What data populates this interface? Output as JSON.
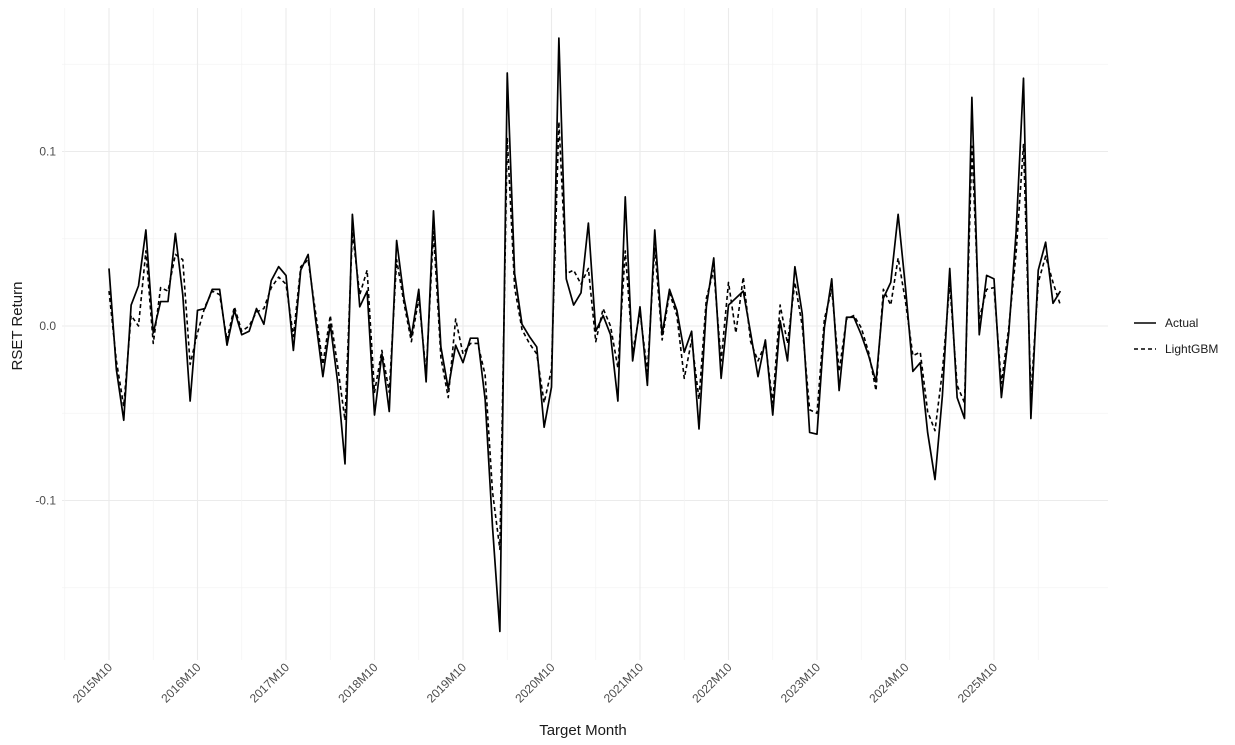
{
  "chart_data": {
    "type": "line",
    "xlabel": "Target Month",
    "ylabel": "RSET Return",
    "x_start": "2015M10",
    "x_tick_labels": [
      "2015M10",
      "2016M10",
      "2017M10",
      "2018M10",
      "2019M10",
      "2020M10",
      "2021M10",
      "2022M10",
      "2023M10",
      "2024M10",
      "2025M10"
    ],
    "y_ticks": [
      -0.1,
      0.0,
      0.1
    ],
    "y_tick_labels": [
      "-0.1",
      "0.0",
      "0.1"
    ],
    "ylim": [
      -0.175,
      0.175
    ],
    "grid": true,
    "legend_position": "right",
    "series": [
      {
        "name": "Actual",
        "linestyle": "solid",
        "values": [
          0.033,
          -0.025,
          -0.054,
          0.012,
          0.023,
          0.055,
          -0.004,
          0.014,
          0.014,
          0.053,
          0.018,
          -0.043,
          0.009,
          0.01,
          0.021,
          0.021,
          -0.011,
          0.009,
          -0.005,
          -0.003,
          0.01,
          0.001,
          0.026,
          0.034,
          0.029,
          -0.014,
          0.032,
          0.041,
          0.004,
          -0.029,
          0.001,
          -0.032,
          -0.079,
          0.064,
          0.011,
          0.02,
          -0.051,
          -0.016,
          -0.049,
          0.049,
          0.016,
          -0.006,
          0.021,
          -0.032,
          0.066,
          -0.012,
          -0.036,
          -0.011,
          -0.021,
          -0.007,
          -0.007,
          -0.042,
          -0.115,
          -0.175,
          0.145,
          0.03,
          0.001,
          -0.006,
          -0.012,
          -0.058,
          -0.035,
          0.165,
          0.027,
          0.012,
          0.019,
          0.059,
          -0.003,
          0.006,
          -0.005,
          -0.043,
          0.074,
          -0.02,
          0.011,
          -0.034,
          0.055,
          -0.005,
          0.021,
          0.009,
          -0.015,
          -0.003,
          -0.059,
          0.011,
          0.039,
          -0.03,
          0.012,
          0.016,
          0.02,
          -0.004,
          -0.029,
          -0.008,
          -0.051,
          0.003,
          -0.02,
          0.034,
          0.007,
          -0.061,
          -0.062,
          -0.001,
          0.027,
          -0.037,
          0.005,
          0.005,
          -0.005,
          -0.017,
          -0.032,
          0.016,
          0.025,
          0.064,
          0.022,
          -0.026,
          -0.021,
          -0.061,
          -0.088,
          -0.04,
          0.033,
          -0.041,
          -0.053,
          0.131,
          -0.005,
          0.029,
          0.027,
          -0.041,
          -0.004,
          0.054,
          0.142,
          -0.053,
          0.032,
          0.048,
          0.013,
          0.02
        ]
      },
      {
        "name": "LightGBM",
        "linestyle": "dashed",
        "values": [
          0.02,
          -0.02,
          -0.046,
          0.006,
          0.0,
          0.043,
          -0.01,
          0.022,
          0.02,
          0.041,
          0.038,
          -0.022,
          -0.004,
          0.011,
          0.02,
          0.018,
          -0.008,
          0.011,
          -0.003,
          0.0,
          0.008,
          0.01,
          0.022,
          0.028,
          0.024,
          -0.006,
          0.034,
          0.038,
          0.008,
          -0.022,
          0.006,
          -0.023,
          -0.054,
          0.054,
          0.018,
          0.032,
          -0.038,
          -0.014,
          -0.038,
          0.038,
          0.013,
          -0.009,
          0.016,
          -0.027,
          0.054,
          -0.018,
          -0.041,
          0.004,
          -0.016,
          -0.01,
          -0.01,
          -0.028,
          -0.095,
          -0.128,
          0.108,
          0.022,
          -0.002,
          -0.01,
          -0.016,
          -0.044,
          -0.025,
          0.117,
          0.03,
          0.032,
          0.024,
          0.033,
          -0.009,
          0.01,
          0.0,
          -0.024,
          0.043,
          -0.015,
          0.008,
          -0.026,
          0.045,
          -0.008,
          0.019,
          0.006,
          -0.03,
          -0.008,
          -0.042,
          0.016,
          0.032,
          -0.02,
          0.025,
          -0.004,
          0.028,
          -0.009,
          -0.02,
          -0.01,
          -0.044,
          0.012,
          -0.01,
          0.025,
          0.0,
          -0.048,
          -0.05,
          0.004,
          0.021,
          -0.026,
          0.004,
          0.006,
          -0.001,
          -0.015,
          -0.037,
          0.021,
          0.012,
          0.039,
          0.014,
          -0.017,
          -0.015,
          -0.049,
          -0.06,
          -0.026,
          0.024,
          -0.034,
          -0.044,
          0.103,
          0.004,
          0.021,
          0.022,
          -0.033,
          -0.001,
          0.042,
          0.104,
          -0.04,
          0.025,
          0.04,
          0.025,
          0.012
        ]
      }
    ]
  }
}
